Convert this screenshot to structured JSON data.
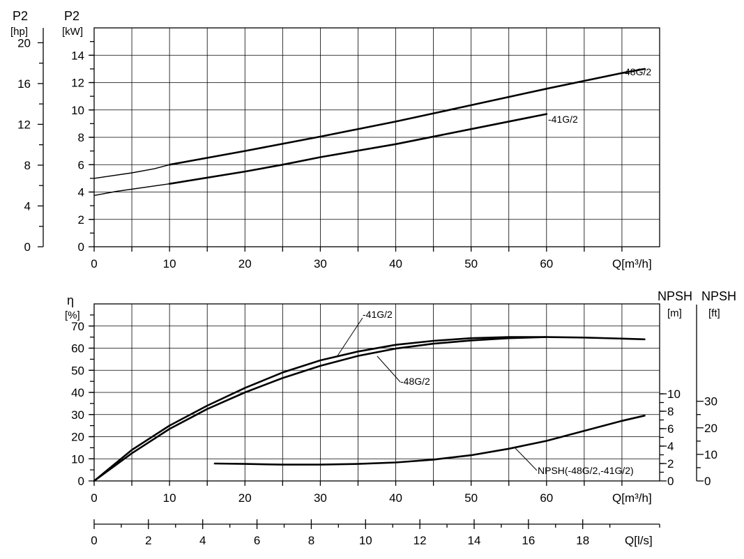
{
  "chart_data": [
    {
      "type": "line",
      "name": "power",
      "x_label": "Q",
      "x_unit": "m³/h",
      "x_ticks": [
        0,
        10,
        20,
        30,
        40,
        50,
        60
      ],
      "xlim": [
        0,
        75
      ],
      "y_left_header": "P2",
      "y_left_unit": "[kW]",
      "y_ticks": [
        0,
        2,
        4,
        6,
        8,
        10,
        12,
        14
      ],
      "ylim": [
        0,
        16
      ],
      "y_outer_header": "P2",
      "y_outer_unit": "[hp]",
      "y_outer_ticks": [
        0,
        4,
        8,
        12,
        16,
        20
      ],
      "grid": true,
      "series": [
        {
          "name": "48G/2",
          "x": [
            0,
            5,
            8,
            10,
            20,
            30,
            40,
            50,
            60,
            70,
            73
          ],
          "y": [
            5.0,
            5.4,
            5.7,
            6.0,
            7.0,
            8.05,
            9.15,
            10.35,
            11.55,
            12.7,
            13.0
          ]
        },
        {
          "name": "-41G/2",
          "x": [
            0,
            3,
            10,
            20,
            25,
            30,
            40,
            50,
            60
          ],
          "y": [
            3.75,
            4.05,
            4.6,
            5.5,
            6.0,
            6.55,
            7.5,
            8.6,
            9.7
          ]
        }
      ]
    },
    {
      "type": "line",
      "name": "efficiency-npsh",
      "x_label": "Q",
      "x_unit": "m³/h",
      "x_ticks": [
        0,
        10,
        20,
        30,
        40,
        50,
        60
      ],
      "xlim": [
        0,
        75
      ],
      "y_left_header": "η",
      "y_left_unit": "[%]",
      "y_ticks": [
        0,
        10,
        20,
        30,
        40,
        50,
        60,
        70
      ],
      "ylim": [
        0,
        80
      ],
      "npsh_header_m": "NPSH",
      "npsh_unit_m": "[m]",
      "npsh_ticks_m": [
        0,
        2,
        4,
        6,
        8,
        10
      ],
      "npsh_header_ft": "NPSH",
      "npsh_unit_ft": "[ft]",
      "npsh_ticks_ft": [
        0,
        10,
        20,
        30
      ],
      "grid": true,
      "series": [
        {
          "name": "-41G/2",
          "x": [
            0,
            5,
            10,
            15,
            20,
            25,
            30,
            35,
            40,
            45,
            50,
            55,
            60,
            65,
            70,
            73
          ],
          "y": [
            0,
            14,
            25,
            34,
            42,
            49,
            54.5,
            58.5,
            61.5,
            63.3,
            64.5,
            65,
            65,
            64.8,
            64.3,
            64
          ]
        },
        {
          "name": "-48G/2",
          "x": [
            0,
            5,
            10,
            15,
            20,
            25,
            30,
            35,
            40,
            45,
            50,
            55,
            60
          ],
          "y": [
            0,
            12.5,
            23.5,
            32.5,
            40,
            46.5,
            52,
            56.5,
            59.8,
            62,
            63.5,
            64.5,
            65
          ]
        },
        {
          "name": "NPSH(-48G/2,-41G/2)",
          "unit": "m",
          "x": [
            16,
            20,
            25,
            30,
            35,
            40,
            45,
            50,
            55,
            60,
            65,
            70,
            73
          ],
          "y": [
            2.0,
            1.95,
            1.87,
            1.87,
            1.95,
            2.12,
            2.45,
            2.95,
            3.7,
            4.6,
            5.75,
            6.9,
            7.5
          ]
        }
      ]
    },
    {
      "type": "axis",
      "name": "flow-l-per-s",
      "x_label": "Q",
      "x_unit": "[l/s]",
      "x_ticks": [
        0,
        2,
        4,
        6,
        8,
        10,
        12,
        14,
        16,
        18
      ],
      "xlim": [
        0,
        20.8333
      ]
    }
  ],
  "labels": {
    "q_m3h": "Q[m³/h]",
    "q_ls": "Q[l/s]",
    "lbl_48_top": "48G/2",
    "lbl_41_top": "-41G/2",
    "lbl_41_bottom": "-41G/2",
    "lbl_48_bottom": "-48G/2",
    "lbl_npsh_curve": "NPSH(-48G/2,-41G/2)"
  }
}
